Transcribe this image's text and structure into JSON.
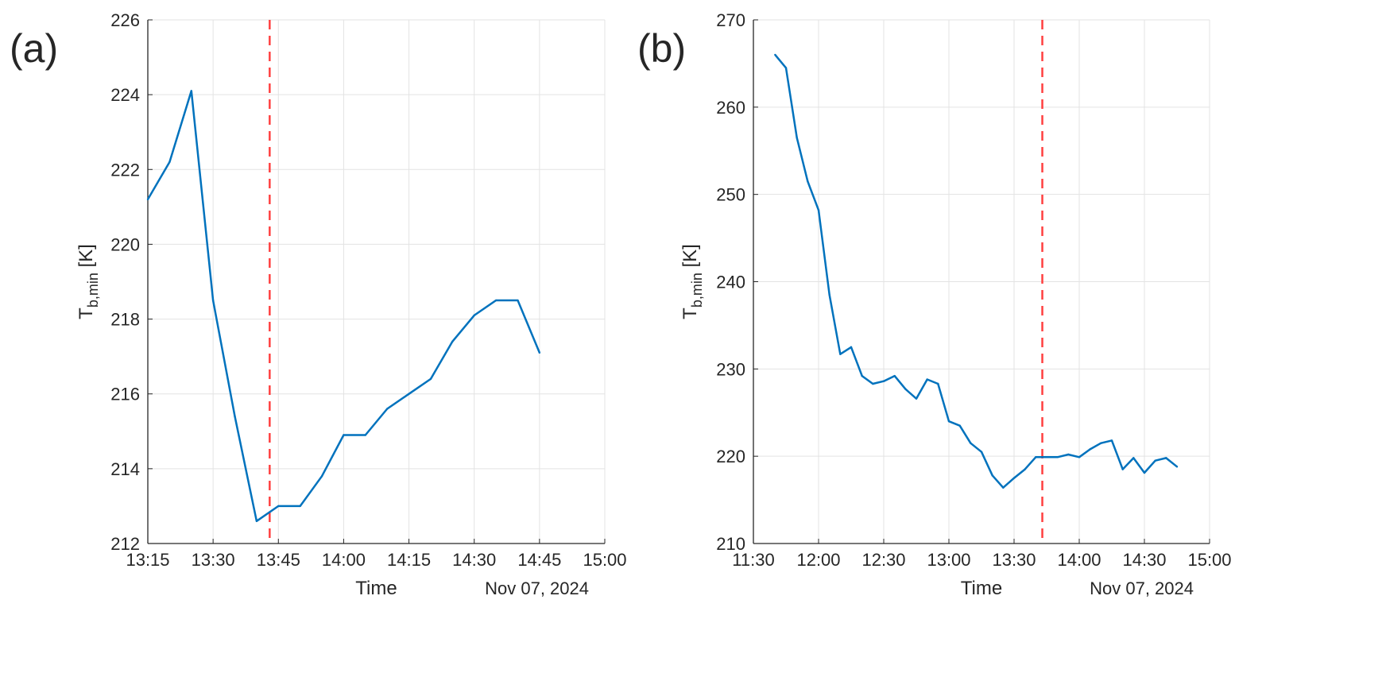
{
  "chart_data": [
    {
      "type": "line",
      "panel_label": "(a)",
      "xlabel": "Time",
      "date_label": "Nov 07, 2024",
      "ylabel_main": "T",
      "ylabel_sub": "b,min",
      "ylabel_unit": " [K]",
      "xlim": [
        "13:15",
        "15:00"
      ],
      "ylim": [
        212,
        226
      ],
      "xticks": [
        "13:15",
        "13:30",
        "13:45",
        "14:00",
        "14:15",
        "14:30",
        "14:45",
        "15:00"
      ],
      "yticks": [
        "212",
        "214",
        "216",
        "218",
        "220",
        "222",
        "224",
        "226"
      ],
      "grid": true,
      "line_color": "#0072BD",
      "marker_line": {
        "x": "13:43",
        "color": "#FF4040",
        "style": "dashed"
      },
      "x": [
        "13:15",
        "13:20",
        "13:25",
        "13:30",
        "13:35",
        "13:40",
        "13:45",
        "13:50",
        "13:55",
        "14:00",
        "14:05",
        "14:10",
        "14:15",
        "14:20",
        "14:25",
        "14:30",
        "14:35",
        "14:40",
        "14:45"
      ],
      "y": [
        221.2,
        222.2,
        224.1,
        218.5,
        215.4,
        212.6,
        213.0,
        213.0,
        213.8,
        214.9,
        214.9,
        215.6,
        216.0,
        216.4,
        217.4,
        218.1,
        218.5,
        218.5,
        217.1
      ]
    },
    {
      "type": "line",
      "panel_label": "(b)",
      "xlabel": "Time",
      "date_label": "Nov 07, 2024",
      "ylabel_main": "T",
      "ylabel_sub": "b,min",
      "ylabel_unit": " [K]",
      "xlim": [
        "11:30",
        "15:00"
      ],
      "ylim": [
        210,
        270
      ],
      "xticks": [
        "11:30",
        "12:00",
        "12:30",
        "13:00",
        "13:30",
        "14:00",
        "14:30",
        "15:00"
      ],
      "yticks": [
        "210",
        "220",
        "230",
        "240",
        "250",
        "260",
        "270"
      ],
      "grid": true,
      "line_color": "#0072BD",
      "marker_line": {
        "x": "13:43",
        "color": "#FF4040",
        "style": "dashed"
      },
      "x": [
        "11:40",
        "11:45",
        "11:50",
        "11:55",
        "12:00",
        "12:05",
        "12:10",
        "12:15",
        "12:20",
        "12:25",
        "12:30",
        "12:35",
        "12:40",
        "12:45",
        "12:50",
        "12:55",
        "13:00",
        "13:05",
        "13:10",
        "13:15",
        "13:20",
        "13:25",
        "13:30",
        "13:35",
        "13:40",
        "13:45",
        "13:50",
        "13:55",
        "14:00",
        "14:05",
        "14:10",
        "14:15",
        "14:20",
        "14:25",
        "14:30",
        "14:35",
        "14:40",
        "14:45"
      ],
      "y": [
        266.0,
        264.5,
        256.5,
        251.5,
        248.2,
        238.5,
        231.7,
        232.5,
        229.2,
        228.3,
        228.6,
        229.2,
        227.7,
        226.6,
        228.8,
        228.3,
        224.0,
        223.5,
        221.5,
        220.5,
        217.8,
        216.4,
        217.5,
        218.5,
        219.9,
        219.9,
        219.9,
        220.2,
        219.9,
        220.8,
        221.5,
        221.8,
        218.5,
        219.8,
        218.1,
        219.5,
        219.8,
        218.8
      ]
    }
  ]
}
